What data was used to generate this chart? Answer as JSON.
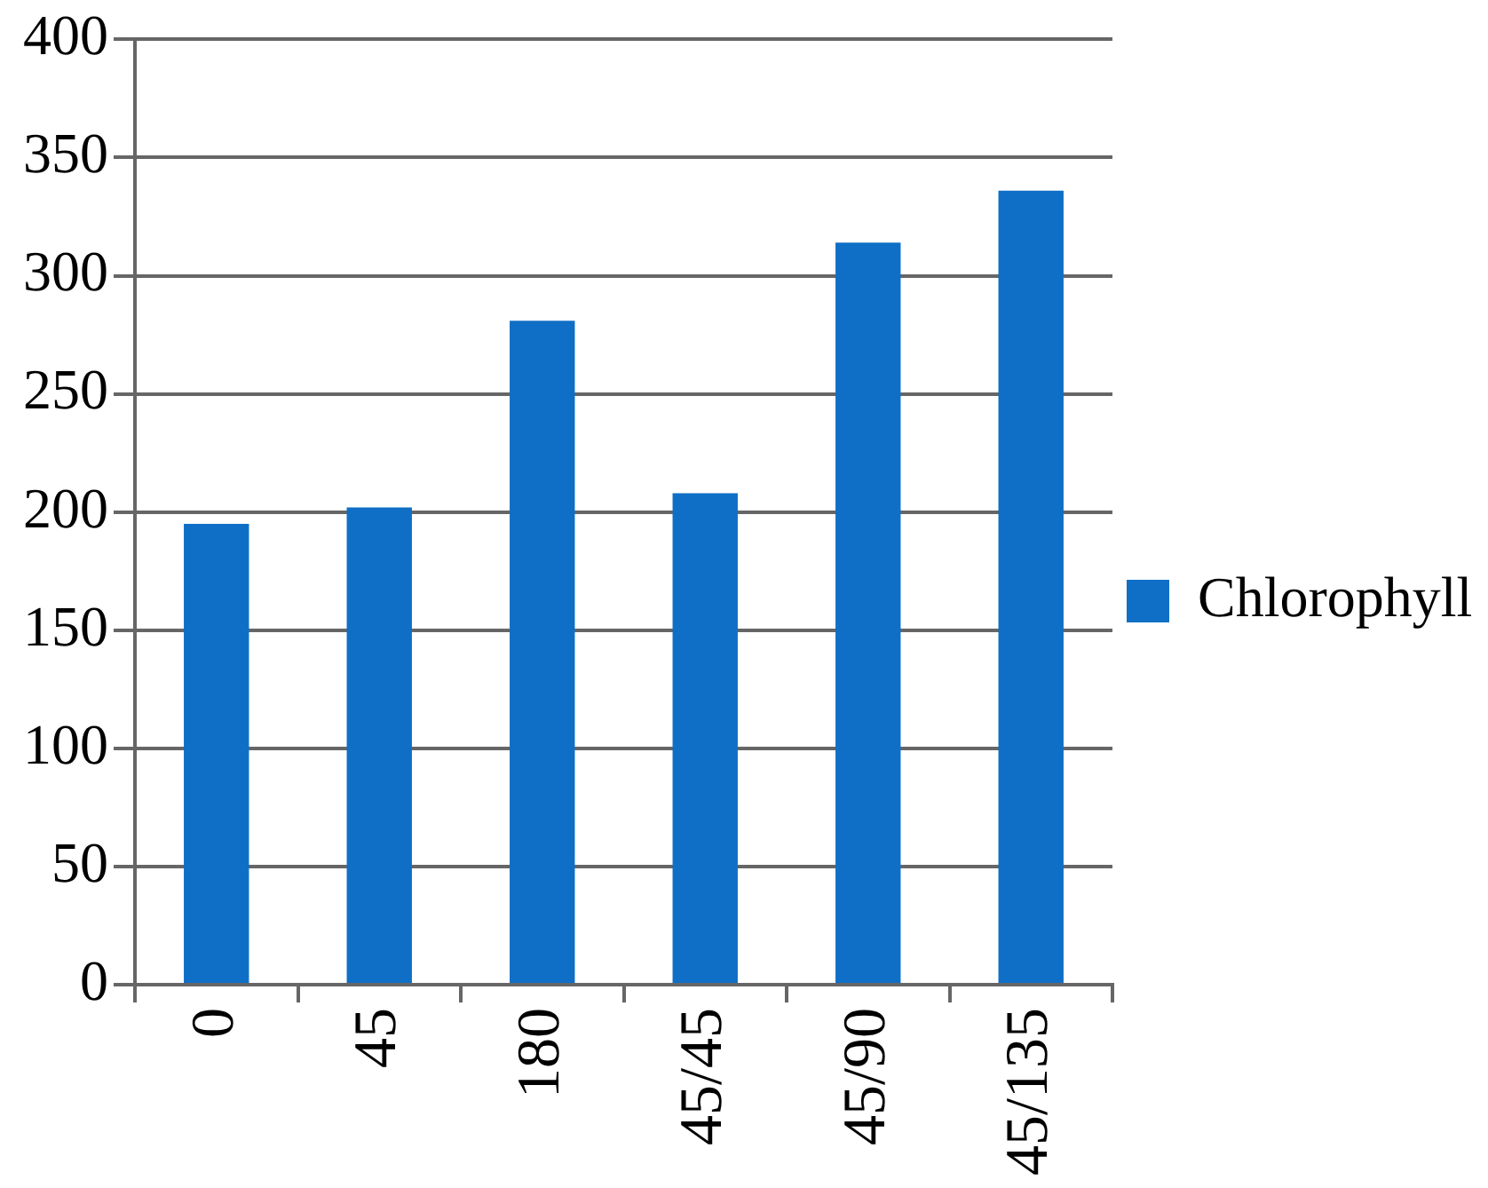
{
  "chart_data": {
    "type": "bar",
    "categories": [
      "0",
      "45",
      "180",
      "45/45",
      "45/90",
      "45/135"
    ],
    "series": [
      {
        "name": "Chlorophyll",
        "color": "#0f6fc6",
        "values": [
          195,
          202,
          281,
          208,
          314,
          336
        ]
      }
    ],
    "ylim": [
      0,
      400
    ],
    "yticks": [
      0,
      50,
      100,
      150,
      200,
      250,
      300,
      350,
      400
    ],
    "grid": "y",
    "legend": "right"
  }
}
